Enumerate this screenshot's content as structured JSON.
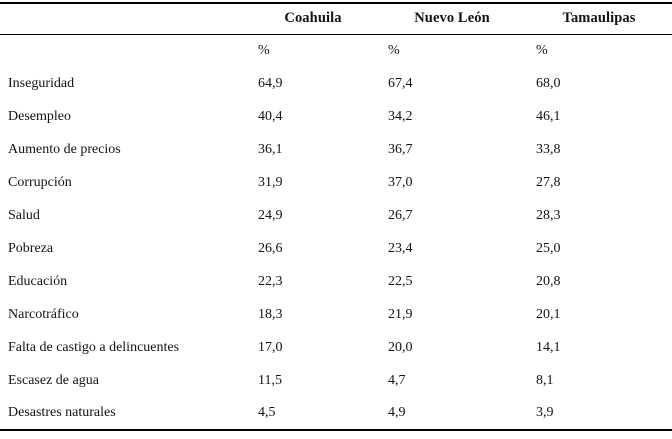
{
  "table": {
    "corner_header": "",
    "column_headers": [
      "Coahuila",
      "Nuevo León",
      "Tamaulipas"
    ],
    "unit_row": [
      "%",
      "%",
      "%"
    ],
    "rows": [
      {
        "label": "Inseguridad",
        "values": [
          "64,9",
          "67,4",
          "68,0"
        ]
      },
      {
        "label": "Desempleo",
        "values": [
          "40,4",
          "34,2",
          "46,1"
        ]
      },
      {
        "label": "Aumento de precios",
        "values": [
          "36,1",
          "36,7",
          "33,8"
        ]
      },
      {
        "label": "Corrupción",
        "values": [
          "31,9",
          "37,0",
          "27,8"
        ]
      },
      {
        "label": "Salud",
        "values": [
          "24,9",
          "26,7",
          "28,3"
        ]
      },
      {
        "label": "Pobreza",
        "values": [
          "26,6",
          "23,4",
          "25,0"
        ]
      },
      {
        "label": "Educación",
        "values": [
          "22,3",
          "22,5",
          "20,8"
        ]
      },
      {
        "label": "Narcotráfico",
        "values": [
          "18,3",
          "21,9",
          "20,1"
        ]
      },
      {
        "label": "Falta de castigo a delincuentes",
        "values": [
          "17,0",
          "20,0",
          "14,1"
        ]
      },
      {
        "label": "Escasez de agua",
        "values": [
          "11,5",
          "4,7",
          "8,1"
        ]
      },
      {
        "label": "Desastres naturales",
        "values": [
          "4,5",
          "4,9",
          "3,9"
        ]
      }
    ]
  },
  "chart_data": {
    "type": "table",
    "title": "",
    "unit": "%",
    "categories": [
      "Inseguridad",
      "Desempleo",
      "Aumento de precios",
      "Corrupción",
      "Salud",
      "Pobreza",
      "Educación",
      "Narcotráfico",
      "Falta de castigo a delincuentes",
      "Escasez de agua",
      "Desastres naturales"
    ],
    "series": [
      {
        "name": "Coahuila",
        "values": [
          64.9,
          40.4,
          36.1,
          31.9,
          24.9,
          26.6,
          22.3,
          18.3,
          17.0,
          11.5,
          4.5
        ]
      },
      {
        "name": "Nuevo León",
        "values": [
          67.4,
          34.2,
          36.7,
          37.0,
          26.7,
          23.4,
          22.5,
          21.9,
          20.0,
          4.7,
          4.9
        ]
      },
      {
        "name": "Tamaulipas",
        "values": [
          68.0,
          46.1,
          33.8,
          27.8,
          28.3,
          25.0,
          20.8,
          20.1,
          14.1,
          8.1,
          3.9
        ]
      }
    ],
    "layout_hints": {
      "decimal_separator": ",",
      "header_bold": true,
      "rules": "top and bottom thick, thin under header",
      "value_alignment": "left"
    }
  },
  "colors": {
    "text": "#141414",
    "border": "#000000",
    "background": "#ffffff"
  }
}
